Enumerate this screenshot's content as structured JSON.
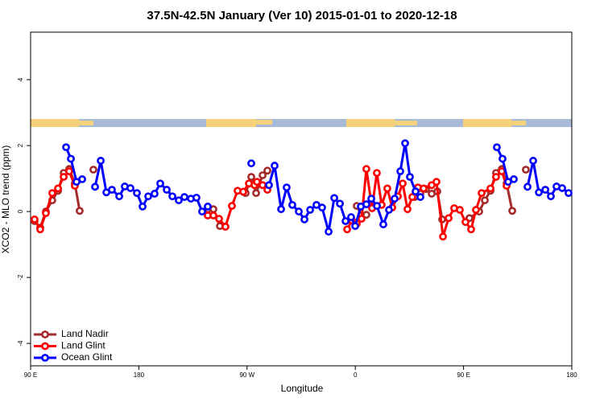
{
  "chart_data": {
    "type": "line",
    "title": "37.5N-42.5N January (Ver 10)   2015-01-01 to 2020-12-18",
    "x_label": "Longitude",
    "y_label": "XCO2 - MLO trend (ppm)",
    "xlim": [
      90,
      540
    ],
    "ylim": [
      -4.68,
      5.44
    ],
    "xticks": [
      {
        "value": 90,
        "label": "90 E"
      },
      180,
      {
        "value": 270,
        "label": "90 W"
      },
      {
        "value": 360,
        "label": "0"
      },
      {
        "value": 450,
        "label": "90 E"
      },
      {
        "value": 540,
        "label": "180"
      }
    ],
    "yticks": [
      -4,
      -2,
      0,
      2,
      4
    ],
    "legend": "bottom-left",
    "series": [
      {
        "name": "Land Nadir",
        "color": "#a52a2a",
        "x": [
          93.3,
          98,
          102.7,
          108,
          112.8,
          117.5,
          122.1,
          126.8,
          130.8,
          null,
          142.2,
          null,
          237.3,
          242,
          247.4,
          252,
          null,
          268.8,
          273.5,
          277.5,
          282.9,
          286.9,
          null,
          361.2,
          365.2,
          369.2,
          null,
          409.4,
          414.1,
          418.8,
          423.5,
          428.2,
          432.2,
          null,
          454.9,
          463,
          467.7,
          472.4,
          477,
          481.8,
          485.8,
          490.5,
          null,
          501.8
        ],
        "values": [
          -0.29,
          -0.49,
          0,
          0.34,
          0.63,
          1.17,
          1.29,
          0.85,
          0.02,
          null,
          1.27,
          null,
          0.07,
          0.07,
          -0.44,
          -0.46,
          null,
          0.56,
          1.05,
          0.56,
          1.1,
          1.24,
          null,
          0.17,
          -0.12,
          -0.1,
          null,
          0.44,
          0.54,
          0.68,
          0.54,
          0.61,
          -0.24,
          null,
          -0.2,
          0,
          0.34,
          0.63,
          1.17,
          1.29,
          0.85,
          0.02,
          null,
          1.27
        ]
      },
      {
        "name": "Land Glint",
        "color": "#ff0000",
        "x": [
          93.3,
          98,
          102.7,
          108,
          112.8,
          117.5,
          122.1,
          126.8,
          null,
          237.3,
          242,
          246.7,
          252,
          257.4,
          262.1,
          266.8,
          271.5,
          276.2,
          278.2,
          282.9,
          286.9,
          null,
          353.2,
          357.2,
          361.2,
          365.2,
          369.2,
          373.9,
          377.9,
          381.9,
          386.6,
          390.7,
          395.4,
          399.4,
          403.4,
          407.4,
          412.1,
          416.8,
          423.5,
          427.5,
          432.9,
          437.6,
          442.2,
          446.9,
          451.6,
          456.3,
          460.3,
          465,
          472.4,
          477,
          481.8,
          485.8
        ],
        "values": [
          -0.24,
          -0.54,
          -0.05,
          0.56,
          0.7,
          1.05,
          1.22,
          0.78,
          null,
          -0.12,
          -0.12,
          -0.22,
          -0.46,
          0.17,
          0.63,
          0.6,
          0.85,
          0.8,
          0.9,
          0.8,
          0.66,
          null,
          -0.54,
          -0.27,
          -0.37,
          -0.22,
          1.29,
          0.1,
          1.17,
          0.2,
          0.7,
          0.12,
          0.46,
          0.85,
          0.07,
          0.44,
          0.73,
          0.7,
          0.8,
          0.9,
          -0.76,
          -0.2,
          0.1,
          0.05,
          -0.32,
          -0.54,
          0.05,
          0.56,
          0.7,
          1.05,
          1.22,
          0.78
        ]
      },
      {
        "name": "Ocean Glint",
        "color": "#0000ff",
        "x": [
          119.5,
          123.5,
          128.2,
          132.9,
          null,
          143.6,
          148.3,
          153,
          157.6,
          163.7,
          168.3,
          173,
          178.4,
          183.1,
          187.8,
          193.1,
          197.8,
          203.2,
          207.9,
          213.2,
          217.9,
          223.3,
          227.9,
          232.6,
          237.3,
          null,
          273.5,
          null,
          288.2,
          292.9,
          298.3,
          302.9,
          307.6,
          313,
          317.7,
          322.4,
          327.7,
          332.4,
          337.8,
          342.5,
          347.2,
          351.9,
          356.5,
          359.9,
          364.6,
          369.2,
          373.3,
          378,
          383.3,
          388,
          392.7,
          397.4,
          401.4,
          405.4,
          410.1,
          414.1,
          null,
          477.7,
          482.4,
          487.1,
          491.8,
          null,
          503.2,
          507.9,
          512.6,
          518,
          522.6,
          527.3,
          532,
          537.3
        ],
        "values": [
          1.95,
          1.6,
          0.9,
          0.98,
          null,
          0.75,
          1.54,
          0.58,
          0.66,
          0.46,
          0.76,
          0.71,
          0.56,
          0.15,
          0.46,
          0.54,
          0.85,
          0.66,
          0.46,
          0.34,
          0.44,
          0.39,
          0.42,
          0,
          0.15,
          null,
          1.46,
          null,
          0.8,
          1.39,
          0.07,
          0.73,
          0.2,
          0,
          -0.24,
          0.05,
          0.2,
          0.12,
          -0.61,
          0.41,
          0.24,
          -0.29,
          -0.17,
          -0.44,
          0.15,
          0.22,
          0.39,
          0.17,
          -0.39,
          0.05,
          0.39,
          1.22,
          2.07,
          1.05,
          0.61,
          0.44,
          null,
          1.95,
          1.6,
          0.9,
          0.98,
          null,
          0.75,
          1.54,
          0.58,
          0.66,
          0.46,
          0.76,
          0.71,
          0.56
        ]
      }
    ]
  }
}
